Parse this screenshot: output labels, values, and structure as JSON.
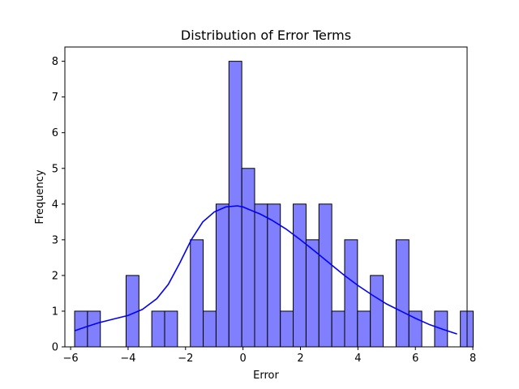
{
  "chart_data": {
    "type": "bar",
    "subtype": "histogram with density curve",
    "title": "Distribution of Error Terms",
    "xlabel": "Error",
    "ylabel": "Frequency",
    "xlim": [
      -6.2,
      7.8
    ],
    "ylim": [
      0,
      8.4
    ],
    "xticks": [
      -6,
      -4,
      -2,
      0,
      2,
      4,
      6,
      8
    ],
    "xtick_labels": [
      "−6",
      "−4",
      "−2",
      "0",
      "2",
      "4",
      "6",
      "8"
    ],
    "yticks": [
      0,
      1,
      2,
      3,
      4,
      5,
      6,
      7,
      8
    ],
    "ytick_labels": [
      "0",
      "1",
      "2",
      "3",
      "4",
      "5",
      "6",
      "7",
      "8"
    ],
    "bin_start": -5.86,
    "bin_width": 0.4475,
    "counts": [
      1,
      1,
      0,
      0,
      2,
      0,
      1,
      1,
      0,
      3,
      1,
      4,
      8,
      5,
      4,
      4,
      1,
      4,
      3,
      4,
      1,
      3,
      1,
      2,
      0,
      3,
      1,
      0,
      1,
      0,
      1
    ],
    "kde": {
      "x": [
        -5.86,
        -5.5,
        -5.0,
        -4.5,
        -4.0,
        -3.5,
        -3.0,
        -2.6,
        -2.2,
        -1.8,
        -1.4,
        -1.0,
        -0.6,
        -0.2,
        0.0,
        0.2,
        0.6,
        1.0,
        1.5,
        2.0,
        2.5,
        3.0,
        3.5,
        4.0,
        4.5,
        5.0,
        5.5,
        6.0,
        6.5,
        7.0,
        7.45
      ],
      "y": [
        0.45,
        0.55,
        0.68,
        0.78,
        0.88,
        1.05,
        1.35,
        1.75,
        2.35,
        3.0,
        3.5,
        3.78,
        3.92,
        3.95,
        3.92,
        3.85,
        3.72,
        3.55,
        3.3,
        3.0,
        2.68,
        2.35,
        2.02,
        1.72,
        1.45,
        1.2,
        1.0,
        0.8,
        0.62,
        0.48,
        0.36
      ]
    },
    "bar_color": "#8080ff",
    "bar_edge_color": "#000000",
    "curve_color": "#0000ff",
    "grid": false,
    "legend": "none"
  }
}
